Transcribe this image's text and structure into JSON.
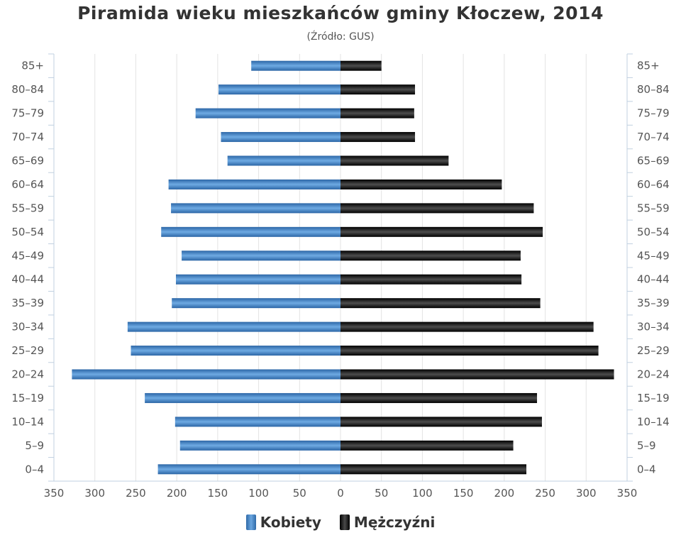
{
  "title": "Piramida wieku mieszkańców gminy Kłoczew, 2014",
  "subtitle": "(Źródło: GUS)",
  "colors": {
    "women": "#3d7bc1",
    "men": "#111111"
  },
  "chart_data": {
    "type": "bar",
    "orientation": "horizontal",
    "layout": "population-pyramid",
    "categories": [
      "85+",
      "80–84",
      "75–79",
      "70–74",
      "65–69",
      "60–64",
      "55–59",
      "50–54",
      "45–49",
      "40–44",
      "35–39",
      "30–34",
      "25–29",
      "20–24",
      "15–19",
      "10–14",
      "5–9",
      "0–4"
    ],
    "series": [
      {
        "name": "Kobiety",
        "side": "left",
        "values": [
          109,
          149,
          177,
          146,
          138,
          210,
          207,
          219,
          194,
          201,
          206,
          260,
          256,
          328,
          239,
          202,
          196,
          223
        ]
      },
      {
        "name": "Mężczyźni",
        "side": "right",
        "values": [
          50,
          91,
          90,
          91,
          132,
          197,
          236,
          247,
          220,
          221,
          244,
          309,
          315,
          334,
          240,
          246,
          211,
          227
        ]
      }
    ],
    "xlim": [
      -350,
      350
    ],
    "x_ticks": [
      350,
      300,
      250,
      200,
      150,
      100,
      50,
      0,
      50,
      100,
      150,
      200,
      250,
      300,
      350
    ],
    "grid": true,
    "legend_position": "bottom-center"
  }
}
